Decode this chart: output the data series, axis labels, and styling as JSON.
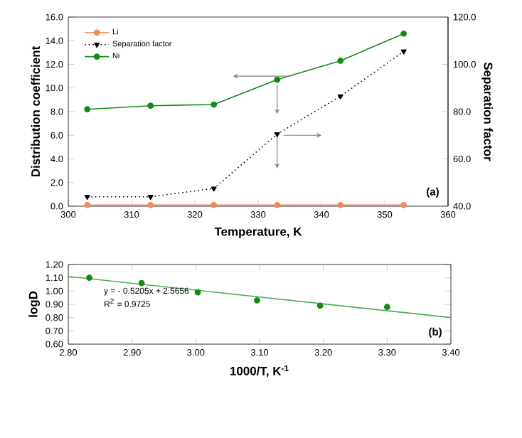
{
  "chart_data": [
    {
      "type": "line",
      "xlabel": "Temperature, K",
      "ylabel": "Distribution coefficient",
      "y2label": "Separation factor",
      "x": [
        303,
        313,
        323,
        333,
        343,
        353
      ],
      "series": [
        {
          "name": "Li",
          "color": "#f08a5d",
          "marker": "circle",
          "line_style": "solid",
          "values": [
            0.1,
            0.1,
            0.1,
            0.1,
            0.1,
            0.1
          ]
        },
        {
          "name": "Separation factor",
          "color": "#000000",
          "marker": "triangle",
          "line_style": "dotted",
          "axis": "y2",
          "values": [
            44,
            44,
            47.5,
            70.5,
            86.5,
            105.5
          ]
        },
        {
          "name": "Ni",
          "color": "#138a13",
          "marker": "circle",
          "line_style": "solid",
          "values": [
            8.2,
            8.5,
            8.6,
            10.7,
            12.3,
            14.6
          ]
        }
      ],
      "xlim": [
        300,
        360
      ],
      "xticks": [
        300,
        310,
        320,
        330,
        340,
        350,
        360
      ],
      "ylim": [
        0,
        16
      ],
      "yticks": [
        {
          "value": 0,
          "label": "0.0"
        },
        {
          "value": 2,
          "label": "2.0"
        },
        {
          "value": 4,
          "label": "4.0"
        },
        {
          "value": 6,
          "label": "6.0"
        },
        {
          "value": 8,
          "label": "8.0"
        },
        {
          "value": 10,
          "label": "10.0"
        },
        {
          "value": 12,
          "label": "12.0"
        },
        {
          "value": 14,
          "label": "14.0"
        },
        {
          "value": 16,
          "label": "16.0"
        }
      ],
      "y2lim": [
        40,
        120
      ],
      "y2ticks": [
        {
          "value": 40,
          "label": "40.0"
        },
        {
          "value": 60,
          "label": "60.0"
        },
        {
          "value": 80,
          "label": "80.0"
        },
        {
          "value": 100,
          "label": "100.0"
        },
        {
          "value": 120,
          "label": "120.0"
        }
      ],
      "legend": "top left",
      "grid": false,
      "annotations": [
        "(a)"
      ]
    },
    {
      "type": "scatter",
      "xlabel": "1000/T, K$^{-1}$",
      "ylabel": "logD",
      "series": [
        {
          "color": "#138a13",
          "marker": "circle",
          "x": [
            2.833,
            2.915,
            3.003,
            3.096,
            3.195,
            3.3
          ],
          "values": [
            1.1,
            1.06,
            0.99,
            0.93,
            0.89,
            0.88
          ]
        },
        {
          "type": "line",
          "color": "#4caf50",
          "marker": "none",
          "line_style": "solid",
          "x": [
            2.8,
            3.4
          ],
          "values": [
            1.11,
            0.8
          ]
        }
      ],
      "xlim": [
        2.8,
        3.4
      ],
      "xticks": [
        {
          "value": 2.8,
          "label": "2.80"
        },
        {
          "value": 2.9,
          "label": "2.90"
        },
        {
          "value": 3.0,
          "label": "3.00"
        },
        {
          "value": 3.1,
          "label": "3.10"
        },
        {
          "value": 3.2,
          "label": "3.20"
        },
        {
          "value": 3.3,
          "label": "3.30"
        },
        {
          "value": 3.4,
          "label": "3.40"
        }
      ],
      "ylim": [
        0.6,
        1.2
      ],
      "yticks": [
        {
          "value": 0.6,
          "label": "0.60"
        },
        {
          "value": 0.7,
          "label": "0.70"
        },
        {
          "value": 0.8,
          "label": "0.80"
        },
        {
          "value": 0.9,
          "label": "0.90"
        },
        {
          "value": 1.0,
          "label": "1.00"
        },
        {
          "value": 1.1,
          "label": "1.10"
        },
        {
          "value": 1.2,
          "label": "1.20"
        }
      ],
      "legend": false,
      "grid": false,
      "annotations": [
        "y = - 0.5205x + 2.5656",
        "R$^{2}$ = 0.9725",
        "(b)"
      ]
    }
  ]
}
